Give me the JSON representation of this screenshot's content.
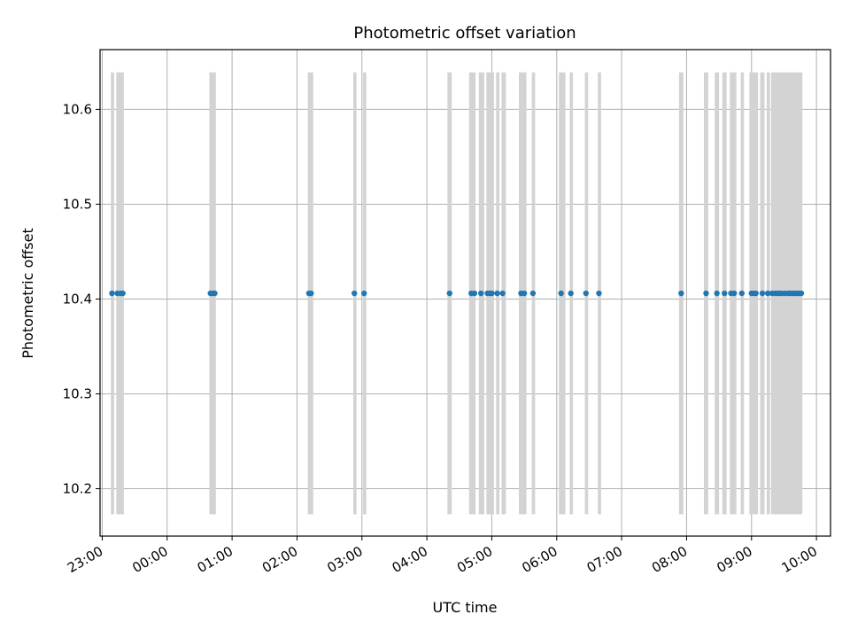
{
  "chart_data": {
    "type": "scatter",
    "title": "Photometric offset variation",
    "xlabel": "UTC time",
    "ylabel": "Photometric offset",
    "x_ticks": [
      "23:00",
      "00:00",
      "01:00",
      "02:00",
      "03:00",
      "04:00",
      "05:00",
      "06:00",
      "07:00",
      "08:00",
      "09:00",
      "10:00"
    ],
    "y_ticks": [
      "10.2",
      "10.3",
      "10.4",
      "10.5",
      "10.6"
    ],
    "xlim": [
      "22:58",
      "10:13"
    ],
    "ylim": [
      10.15,
      10.663
    ],
    "grid": true,
    "series": [
      {
        "color": "#1f77b4",
        "points": [
          {
            "x": "23:09",
            "y": 10.406
          },
          {
            "x": "23:14",
            "y": 10.406
          },
          {
            "x": "23:17",
            "y": 10.406
          },
          {
            "x": "23:19",
            "y": 10.406
          },
          {
            "x": "00:40",
            "y": 10.406
          },
          {
            "x": "00:42",
            "y": 10.406
          },
          {
            "x": "00:44",
            "y": 10.406
          },
          {
            "x": "02:11",
            "y": 10.406
          },
          {
            "x": "02:13",
            "y": 10.406
          },
          {
            "x": "02:53",
            "y": 10.406
          },
          {
            "x": "03:02",
            "y": 10.406
          },
          {
            "x": "04:21",
            "y": 10.406
          },
          {
            "x": "04:41",
            "y": 10.406
          },
          {
            "x": "04:44",
            "y": 10.406
          },
          {
            "x": "04:50",
            "y": 10.406
          },
          {
            "x": "04:56",
            "y": 10.406
          },
          {
            "x": "04:58",
            "y": 10.406
          },
          {
            "x": "05:00",
            "y": 10.406
          },
          {
            "x": "05:05",
            "y": 10.406
          },
          {
            "x": "05:10",
            "y": 10.406
          },
          {
            "x": "05:27",
            "y": 10.406
          },
          {
            "x": "05:30",
            "y": 10.406
          },
          {
            "x": "05:38",
            "y": 10.406
          },
          {
            "x": "06:04",
            "y": 10.406
          },
          {
            "x": "06:13",
            "y": 10.406
          },
          {
            "x": "06:27",
            "y": 10.406
          },
          {
            "x": "06:39",
            "y": 10.406
          },
          {
            "x": "07:55",
            "y": 10.406
          },
          {
            "x": "08:18",
            "y": 10.406
          },
          {
            "x": "08:28",
            "y": 10.406
          },
          {
            "x": "08:35",
            "y": 10.406
          },
          {
            "x": "08:41",
            "y": 10.406
          },
          {
            "x": "08:44",
            "y": 10.406
          },
          {
            "x": "08:51",
            "y": 10.406
          },
          {
            "x": "09:00",
            "y": 10.406
          },
          {
            "x": "09:02",
            "y": 10.406
          },
          {
            "x": "09:04",
            "y": 10.406
          },
          {
            "x": "09:10",
            "y": 10.406
          },
          {
            "x": "09:15",
            "y": 10.406
          },
          {
            "x": "09:19",
            "y": 10.406
          },
          {
            "x": "09:22",
            "y": 10.406
          },
          {
            "x": "09:24",
            "y": 10.406
          },
          {
            "x": "09:26",
            "y": 10.406
          },
          {
            "x": "09:28",
            "y": 10.406
          },
          {
            "x": "09:31",
            "y": 10.406
          },
          {
            "x": "09:34",
            "y": 10.406
          },
          {
            "x": "09:36",
            "y": 10.406
          },
          {
            "x": "09:38",
            "y": 10.406
          },
          {
            "x": "09:40",
            "y": 10.406
          },
          {
            "x": "09:42",
            "y": 10.406
          },
          {
            "x": "09:44",
            "y": 10.406
          },
          {
            "x": "09:46",
            "y": 10.406
          }
        ]
      }
    ],
    "shaded_intervals": {
      "color": "#d3d3d3",
      "y_range": [
        10.173,
        10.639
      ],
      "intervals": [
        [
          "23:08",
          "23:11"
        ],
        [
          "23:13",
          "23:20"
        ],
        [
          "00:39",
          "00:45"
        ],
        [
          "02:10",
          "02:15"
        ],
        [
          "02:52",
          "02:55"
        ],
        [
          "03:01",
          "03:04"
        ],
        [
          "04:19",
          "04:23"
        ],
        [
          "04:39",
          "04:45"
        ],
        [
          "04:48",
          "04:53"
        ],
        [
          "04:55",
          "05:02"
        ],
        [
          "05:04",
          "05:07"
        ],
        [
          "05:09",
          "05:13"
        ],
        [
          "05:25",
          "05:32"
        ],
        [
          "05:37",
          "05:40"
        ],
        [
          "06:02",
          "06:08"
        ],
        [
          "06:12",
          "06:15"
        ],
        [
          "06:26",
          "06:29"
        ],
        [
          "06:38",
          "06:41"
        ],
        [
          "07:53",
          "07:57"
        ],
        [
          "08:16",
          "08:20"
        ],
        [
          "08:26",
          "08:30"
        ],
        [
          "08:33",
          "08:37"
        ],
        [
          "08:40",
          "08:46"
        ],
        [
          "08:50",
          "08:53"
        ],
        [
          "08:58",
          "09:06"
        ],
        [
          "09:08",
          "09:12"
        ],
        [
          "09:14",
          "09:17"
        ],
        [
          "09:18",
          "09:47"
        ]
      ]
    }
  }
}
